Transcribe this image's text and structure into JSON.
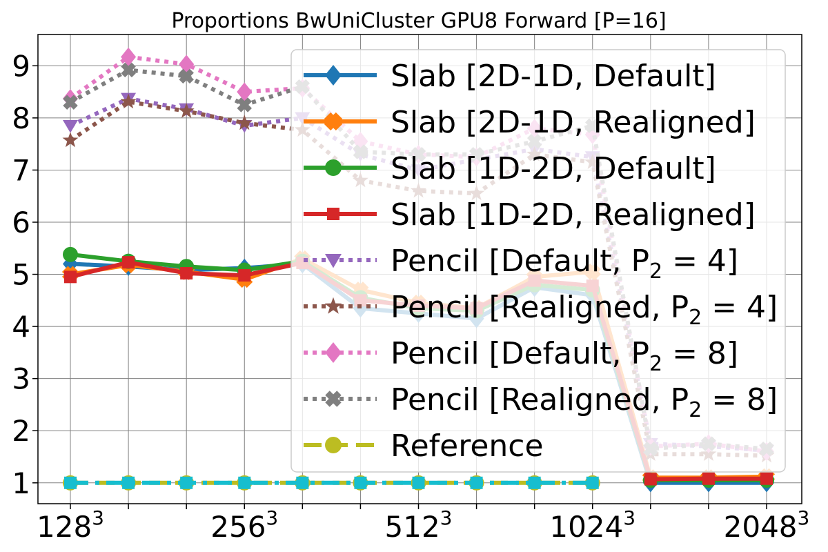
{
  "chart_data": {
    "type": "line",
    "title": "Proportions BwUniCluster GPU8 Forward [P=16]",
    "xlabel": "",
    "ylabel": "",
    "x_tick_labels": [
      {
        "base": "128",
        "exp": "3",
        "index": 0
      },
      {
        "base": "256",
        "exp": "3",
        "index": 3
      },
      {
        "base": "512",
        "exp": "3",
        "index": 6
      },
      {
        "base": "1024",
        "exp": "3",
        "index": 9
      },
      {
        "base": "2048",
        "exp": "3",
        "index": 12
      }
    ],
    "y_ticks": [
      "1",
      "2",
      "3",
      "4",
      "5",
      "6",
      "7",
      "8",
      "9"
    ],
    "ylim": [
      0.6,
      9.6
    ],
    "grid": true,
    "legend_position": "top-right",
    "series": [
      {
        "name": "Slab [2D-1D, Default]",
        "color": "#1f77b4",
        "marker": "diamond",
        "linestyle": "solid",
        "values": [
          5.2,
          5.15,
          5.08,
          5.12,
          5.2,
          4.35,
          4.25,
          4.15,
          4.75,
          4.6,
          1.0,
          1.0,
          1.0
        ]
      },
      {
        "name": "Slab [2D-1D, Realigned]",
        "color": "#ff7f0e",
        "marker": "plus",
        "linestyle": "solid",
        "values": [
          5.0,
          5.18,
          5.05,
          4.9,
          5.3,
          4.7,
          4.45,
          4.35,
          4.95,
          5.05,
          1.1,
          1.1,
          1.12
        ]
      },
      {
        "name": "Slab [1D-2D, Default]",
        "color": "#2ca02c",
        "marker": "circle",
        "linestyle": "solid",
        "values": [
          5.38,
          5.25,
          5.15,
          5.08,
          5.25,
          4.55,
          4.35,
          4.3,
          4.8,
          4.7,
          1.05,
          1.05,
          1.05
        ]
      },
      {
        "name": "Slab [1D-2D, Realigned]",
        "color": "#d62728",
        "marker": "square",
        "linestyle": "solid",
        "values": [
          4.95,
          5.23,
          5.02,
          4.98,
          5.22,
          4.5,
          4.4,
          4.35,
          4.88,
          4.78,
          1.07,
          1.08,
          1.08
        ]
      },
      {
        "name": "Pencil [Default, P2 = 4]",
        "color": "#9467bd",
        "marker": "triangle-down",
        "linestyle": "dotted",
        "values": [
          7.85,
          8.37,
          8.17,
          7.85,
          8.0,
          7.3,
          7.0,
          7.2,
          7.4,
          7.25,
          1.75,
          1.7,
          1.62
        ]
      },
      {
        "name": "Pencil [Realigned, P2 = 4]",
        "color": "#8c564b",
        "marker": "star",
        "linestyle": "dotted",
        "values": [
          7.57,
          8.31,
          8.13,
          7.9,
          7.77,
          6.8,
          6.6,
          6.55,
          7.3,
          7.15,
          1.55,
          1.55,
          1.52
        ]
      },
      {
        "name": "Pencil [Default, P2 = 8]",
        "color": "#e377c2",
        "marker": "diamond",
        "linestyle": "dotted",
        "values": [
          8.37,
          9.17,
          9.03,
          8.5,
          8.57,
          7.55,
          7.3,
          7.25,
          7.8,
          7.68,
          1.7,
          1.75,
          1.6
        ]
      },
      {
        "name": "Pencil [Realigned, P2 = 8]",
        "color": "#7f7f7f",
        "marker": "x",
        "linestyle": "dotted",
        "values": [
          8.3,
          8.92,
          8.8,
          8.25,
          8.6,
          7.35,
          7.3,
          7.3,
          7.55,
          7.85,
          1.65,
          1.75,
          1.65
        ]
      },
      {
        "name": "Reference",
        "color": "#bcbd22",
        "marker": "circle",
        "linestyle": "dashed",
        "values": [
          1.0,
          1.0,
          1.0,
          1.0,
          1.0,
          1.0,
          1.0,
          1.0,
          1.0,
          1.0,
          null,
          null,
          null
        ]
      },
      {
        "name": "",
        "color": "#17becf",
        "marker": "square",
        "linestyle": "dashdot",
        "values": [
          1.0,
          1.0,
          1.0,
          1.0,
          1.0,
          1.0,
          1.0,
          1.0,
          1.0,
          1.0,
          null,
          null,
          null
        ]
      }
    ],
    "legend": [
      {
        "prefix": "Slab [2D-1D, Default]",
        "sub": "",
        "suffix": ""
      },
      {
        "prefix": "Slab [2D-1D, Realigned]",
        "sub": "",
        "suffix": ""
      },
      {
        "prefix": "Slab [1D-2D, Default]",
        "sub": "",
        "suffix": ""
      },
      {
        "prefix": "Slab [1D-2D, Realigned]",
        "sub": "",
        "suffix": ""
      },
      {
        "prefix": "Pencil [Default, P",
        "sub": "2",
        "suffix": " = 4]"
      },
      {
        "prefix": "Pencil [Realigned, P",
        "sub": "2",
        "suffix": " = 4]"
      },
      {
        "prefix": "Pencil [Default, P",
        "sub": "2",
        "suffix": " = 8]"
      },
      {
        "prefix": "Pencil [Realigned, P",
        "sub": "2",
        "suffix": " = 8]"
      },
      {
        "prefix": "Reference",
        "sub": "",
        "suffix": ""
      }
    ]
  }
}
